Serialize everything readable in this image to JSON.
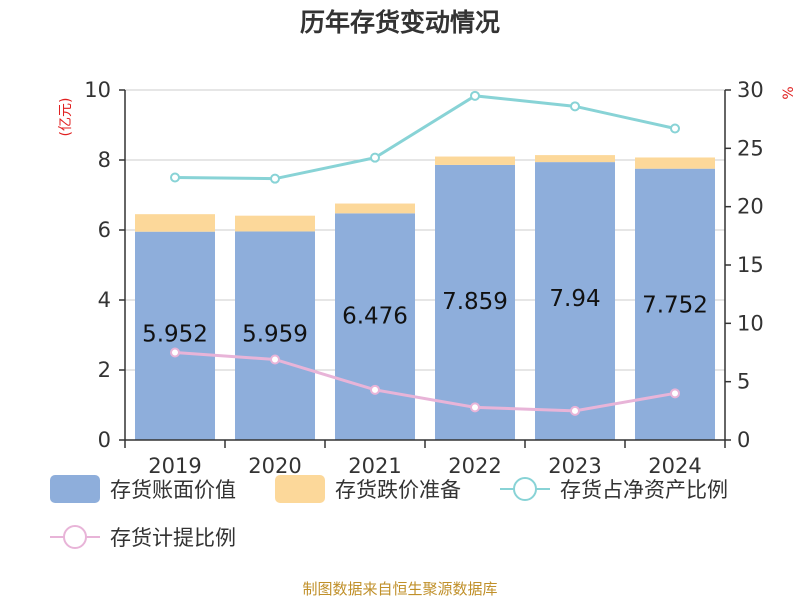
{
  "title": "历年存货变动情况",
  "source": "制图数据来自恒生聚源数据库",
  "colors": {
    "book_value": "#8eaedb",
    "impairment": "#fcd89a",
    "ratio_net_assets": "#88d3d6",
    "provision_ratio": "#e8b4d8",
    "axis_unit": "#e02020"
  },
  "legend": {
    "book_value": "存货账面价值",
    "impairment": "存货跌价准备",
    "ratio_net_assets": "存货占净资产比例",
    "provision_ratio": "存货计提比例"
  },
  "chart_data": {
    "type": "bar",
    "title": "历年存货变动情况",
    "categories": [
      "2019",
      "2020",
      "2021",
      "2022",
      "2023",
      "2024"
    ],
    "left_axis": {
      "unit": "(亿元)",
      "ylim": [
        0,
        10
      ],
      "ticks": [
        0,
        2,
        4,
        6,
        8,
        10
      ]
    },
    "right_axis": {
      "unit": "%",
      "ylim": [
        0,
        30
      ],
      "ticks": [
        0,
        5,
        10,
        15,
        20,
        25,
        30
      ]
    },
    "grid": true,
    "legend_position": "bottom",
    "series": [
      {
        "name": "存货账面价值",
        "type": "bar",
        "stack": "inventory",
        "axis": "left",
        "values": [
          5.952,
          5.959,
          6.476,
          7.859,
          7.94,
          7.752
        ],
        "labels": [
          "5.952",
          "5.959",
          "6.476",
          "7.859",
          "7.94",
          "7.752"
        ]
      },
      {
        "name": "存货跌价准备",
        "type": "bar",
        "stack": "inventory",
        "axis": "left",
        "values": [
          0.5,
          0.45,
          0.28,
          0.24,
          0.2,
          0.32
        ]
      },
      {
        "name": "存货占净资产比例",
        "type": "line",
        "axis": "right",
        "values": [
          22.5,
          22.4,
          24.2,
          29.5,
          28.6,
          26.7
        ]
      },
      {
        "name": "存货计提比例",
        "type": "line",
        "axis": "right",
        "values": [
          7.5,
          6.9,
          4.3,
          2.8,
          2.5,
          4.0
        ]
      }
    ]
  }
}
